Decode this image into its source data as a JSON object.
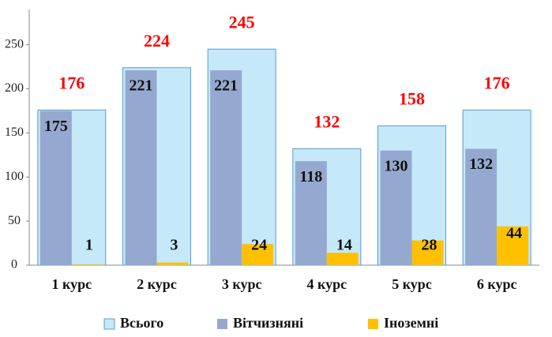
{
  "chart_data": {
    "type": "bar",
    "categories": [
      "1 курс",
      "2 курс",
      "3 курс",
      "4 курс",
      "5 курс",
      "6 курс"
    ],
    "series": [
      {
        "name": "Всього",
        "color": "#c5e9f8",
        "values": [
          176,
          224,
          245,
          132,
          158,
          176
        ]
      },
      {
        "name": "Вітчизняні",
        "color": "#95a9d0",
        "values": [
          175,
          221,
          221,
          118,
          130,
          132
        ]
      },
      {
        "name": "Іноземні",
        "color": "#ffc000",
        "values": [
          1,
          3,
          24,
          14,
          28,
          44
        ]
      }
    ],
    "ylim": [
      0,
      290
    ],
    "yticks": [
      0,
      50,
      100,
      150,
      200,
      250
    ],
    "legend": "bottom"
  }
}
